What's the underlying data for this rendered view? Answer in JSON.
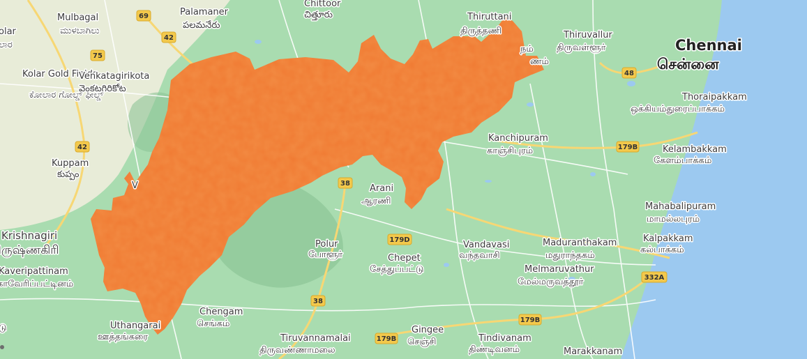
{
  "colors": {
    "land": "#a9dcb0",
    "land_light": "#c8e8c4",
    "hills": "#8dc497",
    "sea": "#9cc9f0",
    "overlay": "#f07a32",
    "road_major": "#f7d774",
    "road_minor": "#ffffff",
    "shield": "#f3c94c"
  },
  "places": [
    {
      "name": "Mulbagal",
      "alt": "ಮುಳಬಾಗಿಲು"
    },
    {
      "name": "Palamaner",
      "alt": "పలమనేరు"
    },
    {
      "name": "Chittoor",
      "alt": "చిత్తూరు"
    },
    {
      "name": "Thiruttani",
      "alt": "திருத்தணி"
    },
    {
      "name": "Thiruvallur",
      "alt": "திருவள்ளூர்"
    },
    {
      "name": "Chennai",
      "alt": "சென்னை"
    },
    {
      "name": "Kolar Gold Fields",
      "alt": "ಕೋಲಾರ ಗೋಲ್ಡ್ ಫೀಲ್ಡ್"
    },
    {
      "name": "Venkatagirikota",
      "alt": "వెంకటగిరికోట"
    },
    {
      "name": "Thoraipakkam",
      "alt": "ஒக்கியம்துரைப்பாக்கம்"
    },
    {
      "name": "Kanchipuram",
      "alt": "காஞ்சிபுரம்"
    },
    {
      "name": "Kelambakkam",
      "alt": "கேளம்பாக்கம்"
    },
    {
      "name": "Kuppam",
      "alt": "కుప్పం"
    },
    {
      "name": "Arani",
      "alt": "ஆரணி"
    },
    {
      "name": "Mahabalipuram",
      "alt": "மாமல்லபுரம்"
    },
    {
      "name": "Krishnagiri",
      "alt": "கிருஷ்ணகிரி"
    },
    {
      "name": "Polur",
      "alt": "போளூர்"
    },
    {
      "name": "Vandavasi",
      "alt": "வந்தவாசி"
    },
    {
      "name": "Maduranthakam",
      "alt": "மதுராந்தகம்"
    },
    {
      "name": "Kalpakkam",
      "alt": "கல்பாக்கம்"
    },
    {
      "name": "Chepet",
      "alt": "சேத்துப்பட்டு"
    },
    {
      "name": "Melmaruvathur",
      "alt": "மேல்மருவத்தூர்"
    },
    {
      "name": "Kaveripattinam",
      "alt": "காவேரிப்பட்டினம்"
    },
    {
      "name": "Chengam",
      "alt": "செங்கம்"
    },
    {
      "name": "Uthangarai",
      "alt": "ஊத்தங்கரை"
    },
    {
      "name": "Tiruvannamalai",
      "alt": "திருவண்ணாமலை"
    },
    {
      "name": "Gingee",
      "alt": "செஞ்சி"
    },
    {
      "name": "Tindivanam",
      "alt": "திண்டிவனம்"
    },
    {
      "name": "Marakkanam",
      "alt": ""
    }
  ],
  "fragments": [
    "olar",
    "ಲಾರ",
    "நம்",
    "ணம்",
    "V",
    "டு"
  ],
  "shields": [
    "69",
    "42",
    "75",
    "42",
    "48",
    "179B",
    "38",
    "179D",
    "38",
    "179B",
    "179B",
    "332A"
  ]
}
